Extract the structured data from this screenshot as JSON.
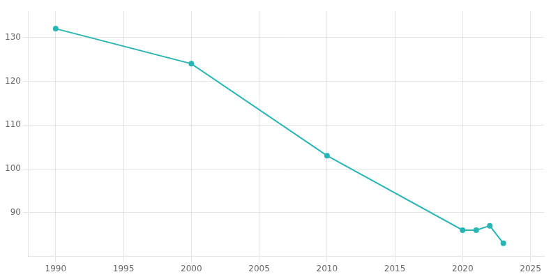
{
  "chart_data": {
    "type": "line",
    "x": [
      1990,
      2000,
      2010,
      2020,
      2021,
      2022,
      2023
    ],
    "values": [
      132,
      124,
      103,
      86,
      86,
      87,
      83
    ],
    "color": "#2ab5b5",
    "marker": "circle",
    "xlim": [
      1988,
      2026
    ],
    "ylim": [
      80,
      136
    ],
    "xticks": [
      1990,
      1995,
      2000,
      2005,
      2010,
      2015,
      2020,
      2025
    ],
    "yticks": [
      90,
      100,
      110,
      120,
      130
    ],
    "grid": true
  }
}
